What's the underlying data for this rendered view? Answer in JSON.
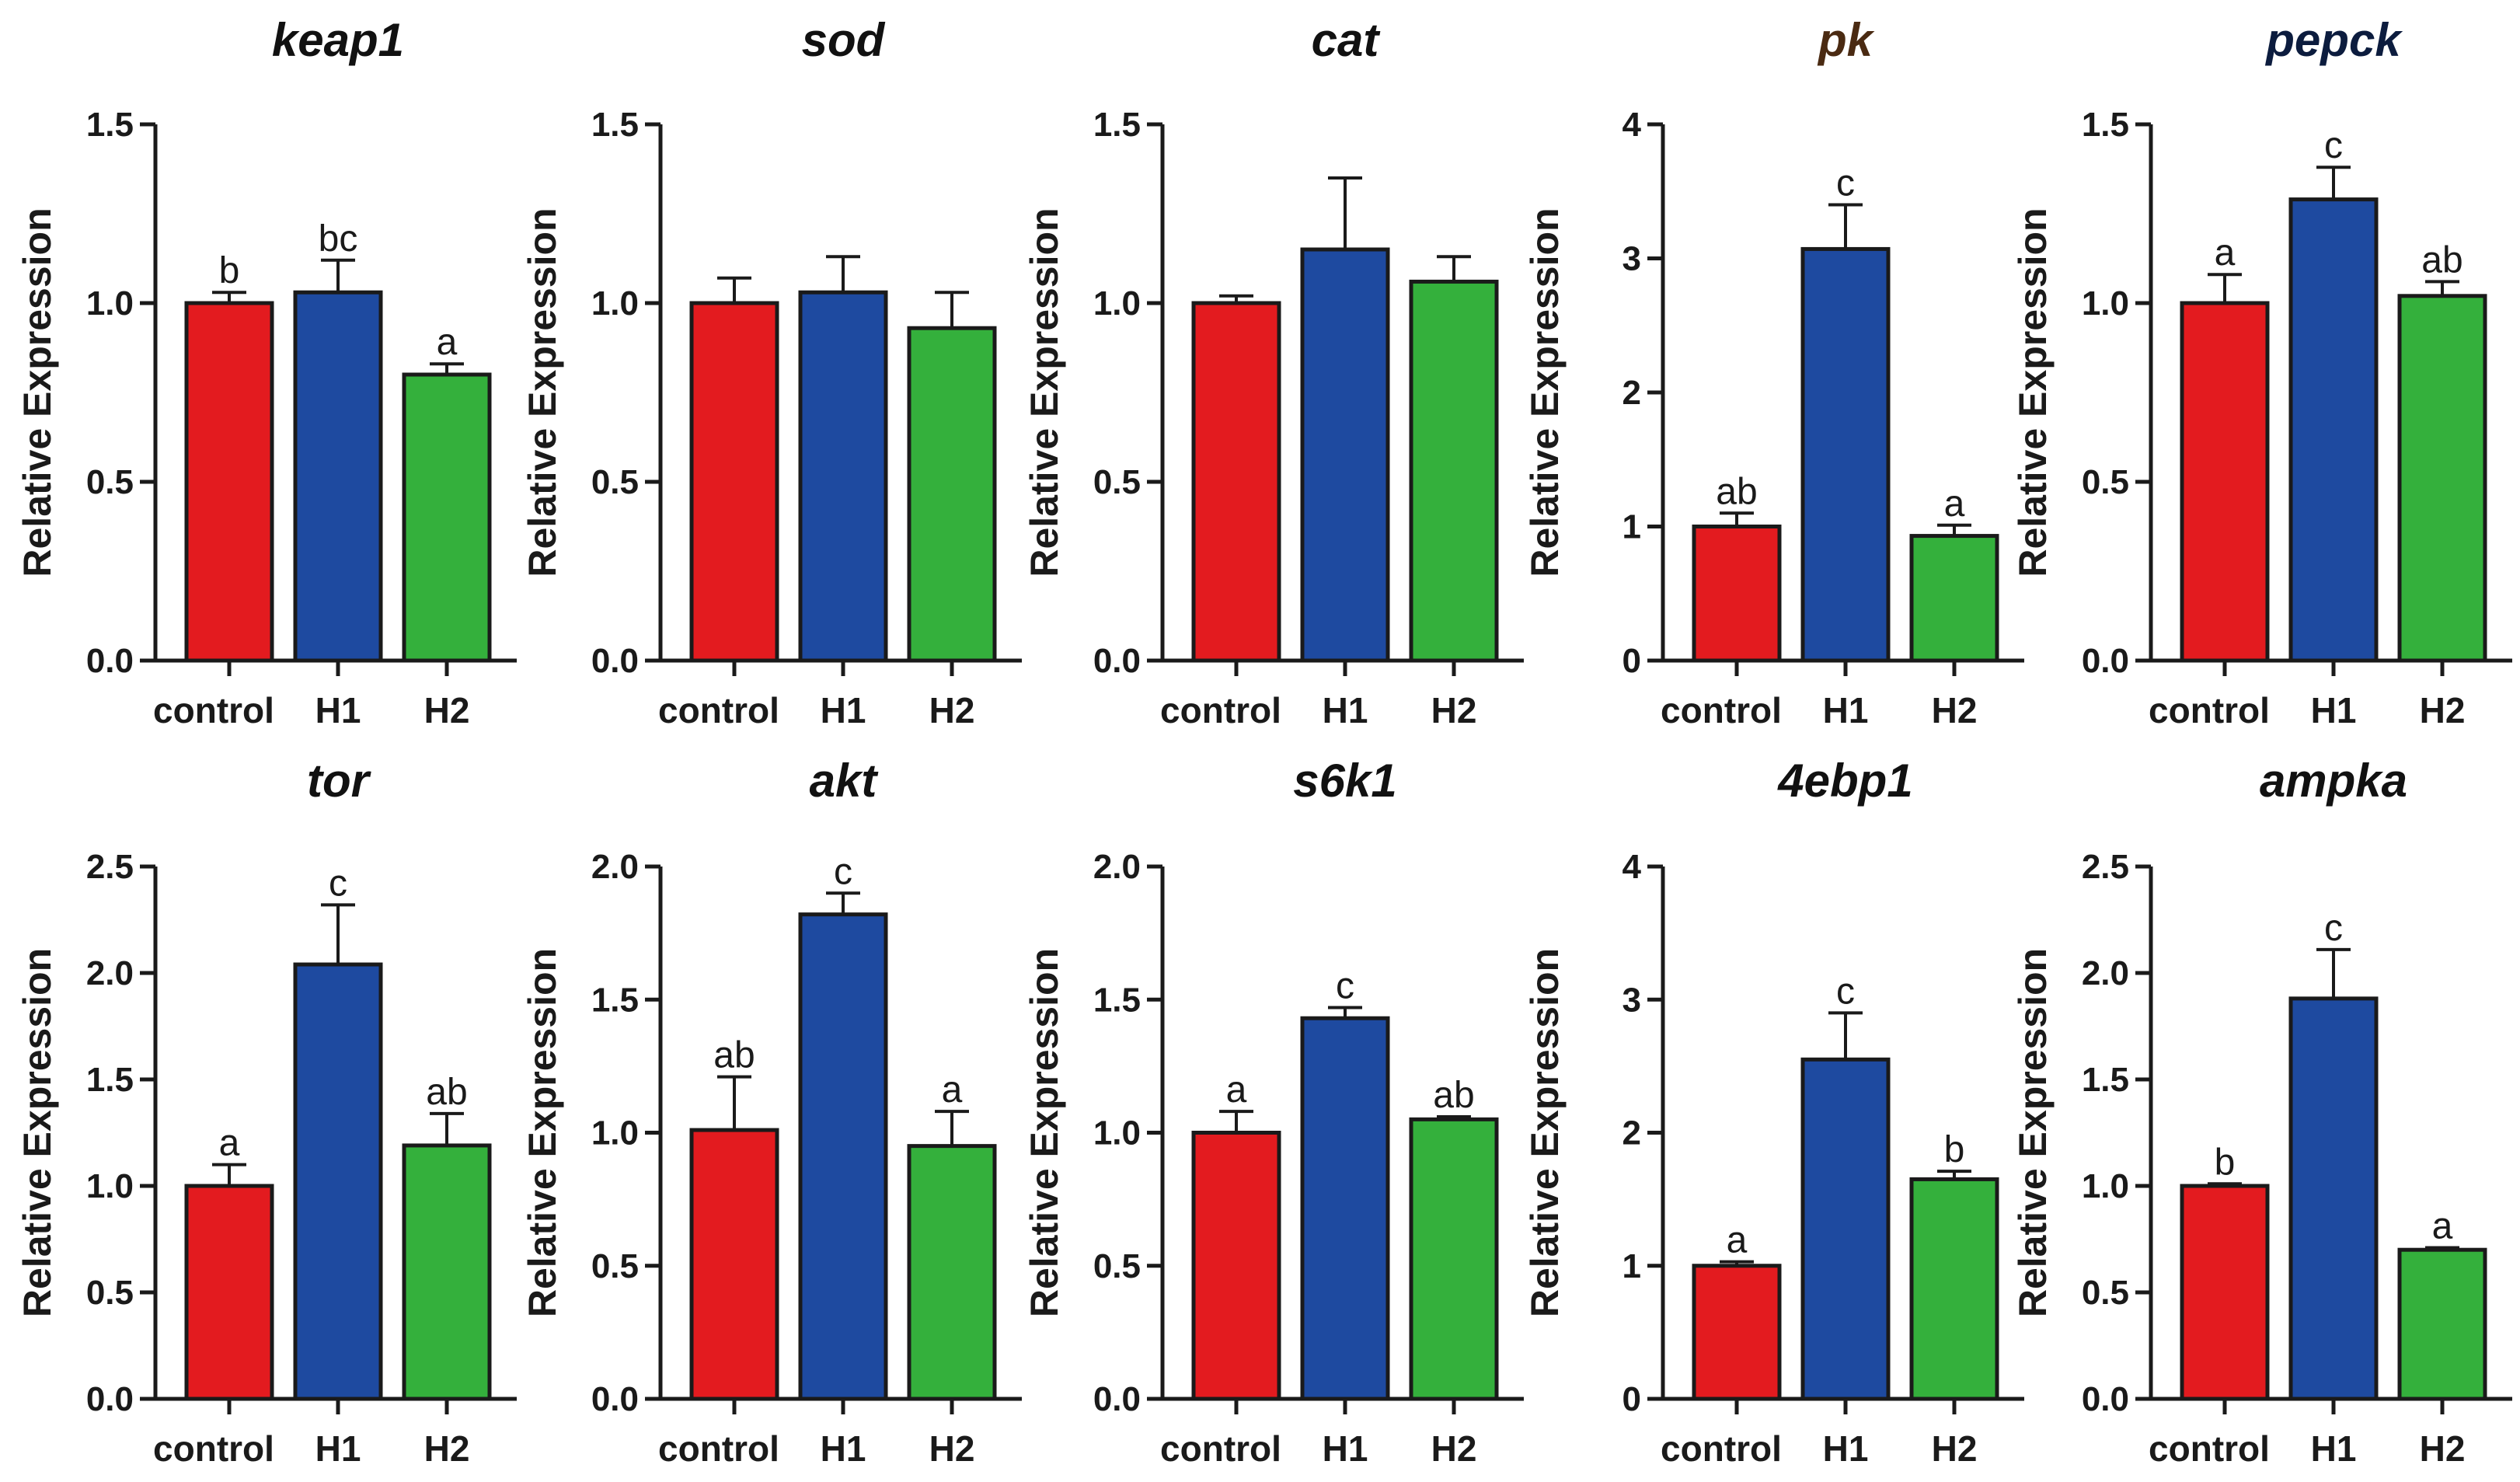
{
  "colors": {
    "control": "#e31b1f",
    "H1": "#1e4aa0",
    "H2": "#34b03c",
    "axis": "#1a1a1a"
  },
  "chart_data": [
    {
      "type": "bar",
      "title": "keap1",
      "title_color": "#111111",
      "ylabel": "Relative Expression",
      "categories": [
        "control",
        "H1",
        "H2"
      ],
      "values": [
        1.0,
        1.03,
        0.8
      ],
      "errors": [
        0.03,
        0.09,
        0.03
      ],
      "letters": [
        "b",
        "bc",
        "a"
      ],
      "ylim": [
        0,
        1.5
      ],
      "yticks": [
        "0.0",
        "0.5",
        "1.0",
        "1.5"
      ]
    },
    {
      "type": "bar",
      "title": "sod",
      "title_color": "#111111",
      "ylabel": "Relative Expression",
      "categories": [
        "control",
        "H1",
        "H2"
      ],
      "values": [
        1.0,
        1.03,
        0.93
      ],
      "errors": [
        0.07,
        0.1,
        0.1
      ],
      "letters": [
        "",
        "",
        ""
      ],
      "ylim": [
        0,
        1.5
      ],
      "yticks": [
        "0.0",
        "0.5",
        "1.0",
        "1.5"
      ]
    },
    {
      "type": "bar",
      "title": "cat",
      "title_color": "#111111",
      "ylabel": "Relative Expression",
      "categories": [
        "control",
        "H1",
        "H2"
      ],
      "values": [
        1.0,
        1.15,
        1.06
      ],
      "errors": [
        0.02,
        0.2,
        0.07
      ],
      "letters": [
        "",
        "",
        ""
      ],
      "ylim": [
        0,
        1.5
      ],
      "yticks": [
        "0.0",
        "0.5",
        "1.0",
        "1.5"
      ]
    },
    {
      "type": "bar",
      "title": "pk",
      "title_color": "#4a2a12",
      "ylabel": "Relative Expression",
      "categories": [
        "control",
        "H1",
        "H2"
      ],
      "values": [
        1.0,
        3.07,
        0.93
      ],
      "errors": [
        0.1,
        0.33,
        0.08
      ],
      "letters": [
        "ab",
        "c",
        "a"
      ],
      "ylim": [
        0,
        4
      ],
      "yticks": [
        "0",
        "1",
        "2",
        "3",
        "4"
      ]
    },
    {
      "type": "bar",
      "title": "pepck",
      "title_color": "#0c1c3e",
      "ylabel": "Relative Expression",
      "categories": [
        "control",
        "H1",
        "H2"
      ],
      "values": [
        1.0,
        1.29,
        1.02
      ],
      "errors": [
        0.08,
        0.09,
        0.04
      ],
      "letters": [
        "a",
        "c",
        "ab"
      ],
      "ylim": [
        0,
        1.5
      ],
      "yticks": [
        "0.0",
        "0.5",
        "1.0",
        "1.5"
      ]
    },
    {
      "type": "bar",
      "title": "tor",
      "title_color": "#111111",
      "ylabel": "Relative Expression",
      "categories": [
        "control",
        "H1",
        "H2"
      ],
      "values": [
        1.0,
        2.04,
        1.19
      ],
      "errors": [
        0.1,
        0.28,
        0.15
      ],
      "letters": [
        "a",
        "c",
        "ab"
      ],
      "ylim": [
        0,
        2.5
      ],
      "yticks": [
        "0.0",
        "0.5",
        "1.0",
        "1.5",
        "2.0",
        "2.5"
      ]
    },
    {
      "type": "bar",
      "title": "akt",
      "title_color": "#111111",
      "ylabel": "Relative Expression",
      "categories": [
        "control",
        "H1",
        "H2"
      ],
      "values": [
        1.01,
        1.82,
        0.95
      ],
      "errors": [
        0.2,
        0.08,
        0.13
      ],
      "letters": [
        "ab",
        "c",
        "a"
      ],
      "ylim": [
        0,
        2.0
      ],
      "yticks": [
        "0.0",
        "0.5",
        "1.0",
        "1.5",
        "2.0"
      ]
    },
    {
      "type": "bar",
      "title": "s6k1",
      "title_color": "#111111",
      "ylabel": "Relative Expression",
      "categories": [
        "control",
        "H1",
        "H2"
      ],
      "values": [
        1.0,
        1.43,
        1.05
      ],
      "errors": [
        0.08,
        0.04,
        0.01
      ],
      "letters": [
        "a",
        "c",
        "ab"
      ],
      "ylim": [
        0,
        2.0
      ],
      "yticks": [
        "0.0",
        "0.5",
        "1.0",
        "1.5",
        "2.0"
      ]
    },
    {
      "type": "bar",
      "title": "4ebp1",
      "title_color": "#111111",
      "ylabel": "Relative Expression",
      "categories": [
        "control",
        "H1",
        "H2"
      ],
      "values": [
        1.0,
        2.55,
        1.65
      ],
      "errors": [
        0.03,
        0.35,
        0.06
      ],
      "letters": [
        "a",
        "c",
        "b"
      ],
      "ylim": [
        0,
        4
      ],
      "yticks": [
        "0",
        "1",
        "2",
        "3",
        "4"
      ]
    },
    {
      "type": "bar",
      "title": "ampka",
      "title_color": "#111111",
      "ylabel": "Relative Expression",
      "categories": [
        "control",
        "H1",
        "H2"
      ],
      "values": [
        1.0,
        1.88,
        0.7
      ],
      "errors": [
        0.01,
        0.23,
        0.01
      ],
      "letters": [
        "b",
        "c",
        "a"
      ],
      "ylim": [
        0,
        2.5
      ],
      "yticks": [
        "0.0",
        "0.5",
        "1.0",
        "1.5",
        "2.0",
        "2.5"
      ]
    }
  ]
}
